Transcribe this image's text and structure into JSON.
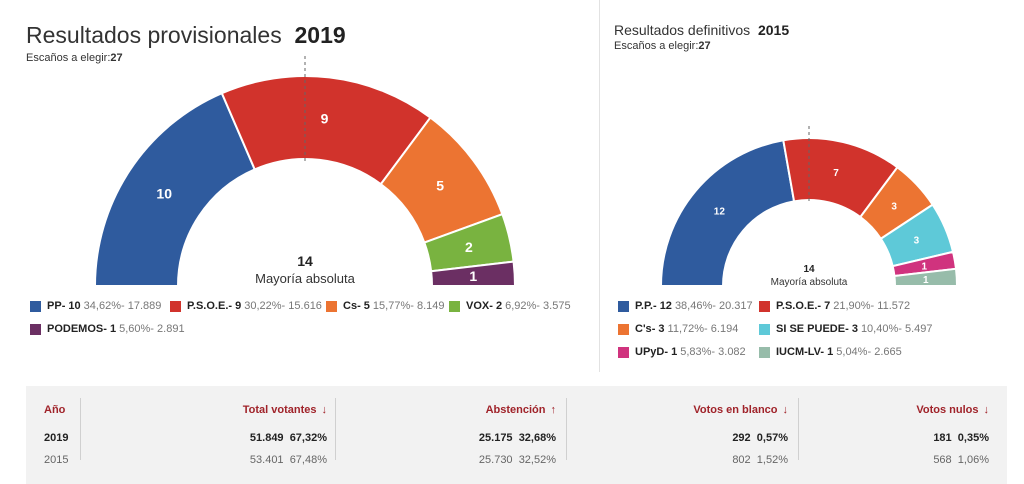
{
  "left": {
    "title": "Resultados provisionales",
    "year": "2019",
    "seats_label": "Escaños a elegir:",
    "seats_value": "27",
    "majority_value": "14",
    "majority_label": "Mayoría absoluta"
  },
  "right": {
    "title": "Resultados definitivos",
    "year": "2015",
    "seats_label": "Escaños a elegir:",
    "seats_value": "27",
    "majority_value": "14",
    "majority_label": "Mayoría absoluta"
  },
  "chart_data": [
    {
      "type": "pie",
      "subtype": "parliament-hemicycle",
      "title": "Resultados provisionales 2019",
      "total_seats": 27,
      "majority": 14,
      "parties": [
        {
          "name": "PP",
          "seats": 10,
          "pct": "34,62%",
          "votes": "17.889",
          "color": "#2f5b9e"
        },
        {
          "name": "P.S.O.E.",
          "seats": 9,
          "pct": "30,22%",
          "votes": "15.616",
          "color": "#d1332c"
        },
        {
          "name": "Cs",
          "seats": 5,
          "pct": "15,77%",
          "votes": "8.149",
          "color": "#ec7432"
        },
        {
          "name": "VOX",
          "seats": 2,
          "pct": "6,92%",
          "votes": "3.575",
          "color": "#79b340"
        },
        {
          "name": "PODEMOS",
          "seats": 1,
          "pct": "5,60%",
          "votes": "2.891",
          "color": "#6b2f63"
        }
      ]
    },
    {
      "type": "pie",
      "subtype": "parliament-hemicycle",
      "title": "Resultados definitivos 2015",
      "total_seats": 27,
      "majority": 14,
      "parties": [
        {
          "name": "P.P.",
          "seats": 12,
          "pct": "38,46%",
          "votes": "20.317",
          "color": "#2f5b9e"
        },
        {
          "name": "P.S.O.E.",
          "seats": 7,
          "pct": "21,90%",
          "votes": "11.572",
          "color": "#d1332c"
        },
        {
          "name": "C's",
          "seats": 3,
          "pct": "11,72%",
          "votes": "6.194",
          "color": "#ec7432"
        },
        {
          "name": "SI SE PUEDE",
          "seats": 3,
          "pct": "10,40%",
          "votes": "5.497",
          "color": "#5ec9d8"
        },
        {
          "name": "UPyD",
          "seats": 1,
          "pct": "5,83%",
          "votes": "3.082",
          "color": "#d0337e"
        },
        {
          "name": "IUCM-LV",
          "seats": 1,
          "pct": "5,04%",
          "votes": "2.665",
          "color": "#97bcaa"
        }
      ]
    }
  ],
  "stats": {
    "headers": {
      "year": "Año",
      "total": "Total votantes",
      "abst": "Abstención",
      "blank": "Votos en blanco",
      "null": "Votos nulos"
    },
    "arrows": {
      "total": "↓",
      "abst": "↑",
      "blank": "↓",
      "null": "↓"
    },
    "rows": [
      {
        "year": "2019",
        "total": "51.849",
        "total_pct": "67,32%",
        "abst": "25.175",
        "abst_pct": "32,68%",
        "blank": "292",
        "blank_pct": "0,57%",
        "null": "181",
        "null_pct": "0,35%"
      },
      {
        "year": "2015",
        "total": "53.401",
        "total_pct": "67,48%",
        "abst": "25.730",
        "abst_pct": "32,52%",
        "blank": "802",
        "blank_pct": "1,52%",
        "null": "568",
        "null_pct": "1,06%"
      }
    ]
  }
}
